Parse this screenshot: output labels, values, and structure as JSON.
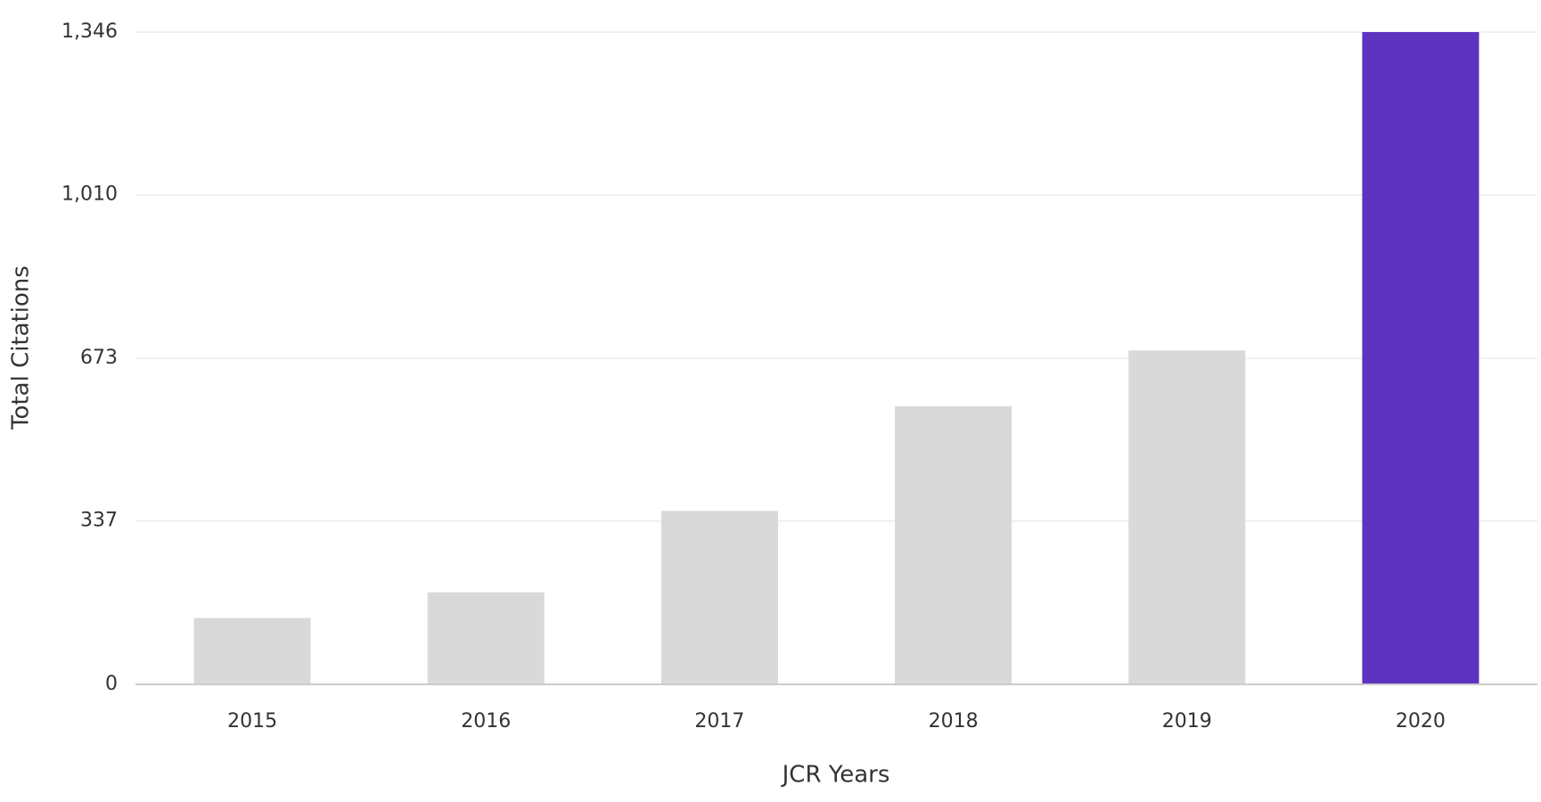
{
  "chart_data": {
    "type": "bar",
    "x_label": "JCR Years",
    "y_label": "Total Citations",
    "categories": [
      "2015",
      "2016",
      "2017",
      "2018",
      "2019",
      "2020"
    ],
    "values": [
      137,
      190,
      358,
      574,
      689,
      1346
    ],
    "colors": [
      "#d9d9d9",
      "#d9d9d9",
      "#d9d9d9",
      "#d9d9d9",
      "#d9d9d9",
      "#5e33bf"
    ],
    "ylim": [
      0,
      1346
    ],
    "yticks": [
      0,
      337,
      673,
      {
        "value": 1010,
        "label": "1,010"
      },
      {
        "value": 1346,
        "label": "1,346"
      }
    ],
    "grid": true
  }
}
